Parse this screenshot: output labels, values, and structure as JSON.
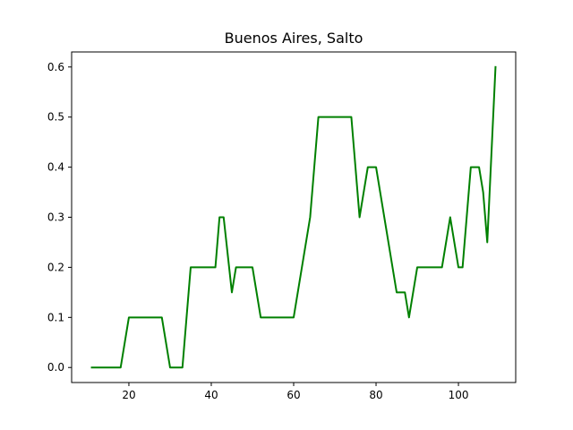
{
  "chart_data": {
    "type": "line",
    "title": "Buenos Aires, Salto",
    "xlabel": "",
    "ylabel": "",
    "xlim": [
      6.1,
      113.9
    ],
    "ylim": [
      -0.03,
      0.63
    ],
    "xticks": [
      20,
      40,
      60,
      80,
      100
    ],
    "xtick_labels": [
      "20",
      "40",
      "60",
      "80",
      "100"
    ],
    "yticks": [
      0.0,
      0.1,
      0.2,
      0.3,
      0.4,
      0.5,
      0.6
    ],
    "ytick_labels": [
      "0.0",
      "0.1",
      "0.2",
      "0.3",
      "0.4",
      "0.5",
      "0.6"
    ],
    "grid": false,
    "series": [
      {
        "color": "#008000",
        "x": [
          11,
          18,
          20,
          28,
          30,
          33,
          35,
          41,
          42,
          43,
          45,
          46,
          50,
          52,
          60,
          64,
          66,
          74,
          76,
          78,
          80,
          85,
          87,
          88,
          89,
          90,
          96,
          98,
          100,
          101,
          102,
          103,
          105,
          106,
          107,
          109
        ],
        "y": [
          0.0,
          0.0,
          0.1,
          0.1,
          0.0,
          0.0,
          0.2,
          0.2,
          0.3,
          0.3,
          0.15,
          0.2,
          0.2,
          0.1,
          0.1,
          0.3,
          0.5,
          0.5,
          0.3,
          0.4,
          0.4,
          0.15,
          0.15,
          0.1,
          0.15,
          0.2,
          0.2,
          0.3,
          0.2,
          0.2,
          0.3,
          0.4,
          0.4,
          0.35,
          0.25,
          0.6
        ]
      }
    ]
  }
}
